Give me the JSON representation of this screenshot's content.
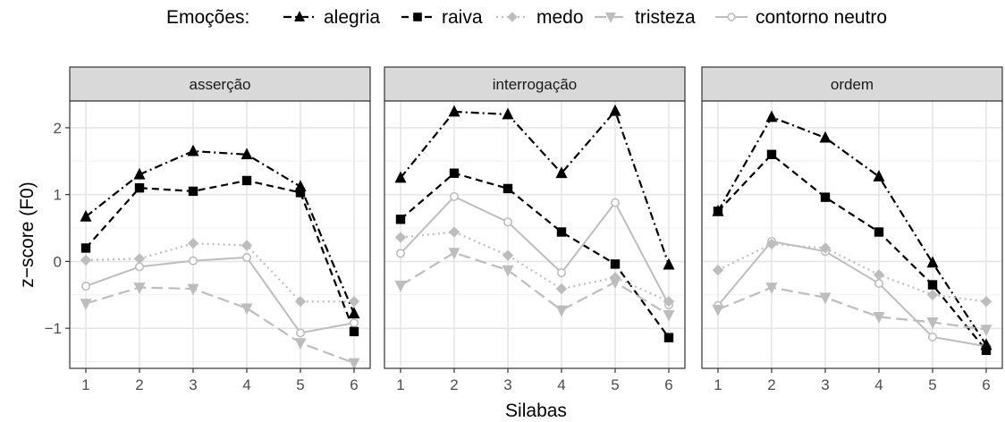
{
  "chart_data": {
    "type": "line",
    "xlabel": "Silabas",
    "ylabel": "z−score (F0)",
    "legend": {
      "title": "Emoções:",
      "placement": "top"
    },
    "x": [
      1,
      2,
      3,
      4,
      5,
      6
    ],
    "xlim": [
      0.7,
      6.3
    ],
    "ylim": [
      -1.6,
      2.4
    ],
    "y_ticks": [
      2,
      1,
      0,
      -1
    ],
    "y_tick_labels": [
      "2",
      "1",
      "0",
      "−1"
    ],
    "grid": true,
    "series_styles": [
      {
        "name": "alegria",
        "color": "#000000",
        "marker": "triangle-up",
        "dash": "dotdash",
        "width": 2.2
      },
      {
        "name": "raiva",
        "color": "#000000",
        "marker": "square",
        "dash": "dashed",
        "width": 2.2
      },
      {
        "name": "medo",
        "color": "#bdbdbd",
        "marker": "diamond",
        "dash": "dotted",
        "width": 2.2
      },
      {
        "name": "tristeza",
        "color": "#bdbdbd",
        "marker": "triangle-down",
        "dash": "longdash",
        "width": 2.2
      },
      {
        "name": "contorno neutro",
        "color": "#bdbdbd",
        "marker": "circle-open",
        "dash": "solid",
        "width": 2
      }
    ],
    "panels": [
      {
        "label": "asserção",
        "series": [
          {
            "name": "alegria",
            "values": [
              0.67,
              1.3,
              1.65,
              1.6,
              1.12,
              -0.78
            ]
          },
          {
            "name": "raiva",
            "values": [
              0.2,
              1.1,
              1.05,
              1.21,
              1.03,
              -1.05
            ]
          },
          {
            "name": "medo",
            "values": [
              0.02,
              0.04,
              0.27,
              0.24,
              -0.6,
              -0.6
            ]
          },
          {
            "name": "tristeza",
            "values": [
              -0.63,
              -0.39,
              -0.41,
              -0.7,
              -1.22,
              -1.52
            ]
          },
          {
            "name": "contorno neutro",
            "values": [
              -0.37,
              -0.08,
              0.01,
              0.06,
              -1.07,
              -0.92
            ]
          }
        ]
      },
      {
        "label": "interrogação",
        "series": [
          {
            "name": "alegria",
            "values": [
              1.25,
              2.24,
              2.2,
              1.32,
              2.25,
              -0.05
            ]
          },
          {
            "name": "raiva",
            "values": [
              0.63,
              1.32,
              1.09,
              0.44,
              -0.04,
              -1.14
            ]
          },
          {
            "name": "medo",
            "values": [
              0.36,
              0.44,
              0.09,
              -0.41,
              -0.24,
              -0.6
            ]
          },
          {
            "name": "tristeza",
            "values": [
              -0.36,
              0.13,
              -0.13,
              -0.73,
              -0.31,
              -0.8
            ]
          },
          {
            "name": "contorno neutro",
            "values": [
              0.12,
              0.97,
              0.59,
              -0.17,
              0.88,
              -0.65
            ]
          }
        ]
      },
      {
        "label": "ordem",
        "series": [
          {
            "name": "alegria",
            "values": [
              0.75,
              2.16,
              1.85,
              1.27,
              -0.02,
              -1.25
            ]
          },
          {
            "name": "raiva",
            "values": [
              0.75,
              1.6,
              0.96,
              0.44,
              -0.35,
              -1.33
            ]
          },
          {
            "name": "medo",
            "values": [
              -0.13,
              0.26,
              0.2,
              -0.2,
              -0.5,
              -0.6
            ]
          },
          {
            "name": "tristeza",
            "values": [
              -0.72,
              -0.39,
              -0.54,
              -0.83,
              -0.91,
              -1.02
            ]
          },
          {
            "name": "contorno neutro",
            "values": [
              -0.66,
              0.3,
              0.15,
              -0.33,
              -1.13,
              -1.27
            ]
          }
        ]
      }
    ]
  }
}
